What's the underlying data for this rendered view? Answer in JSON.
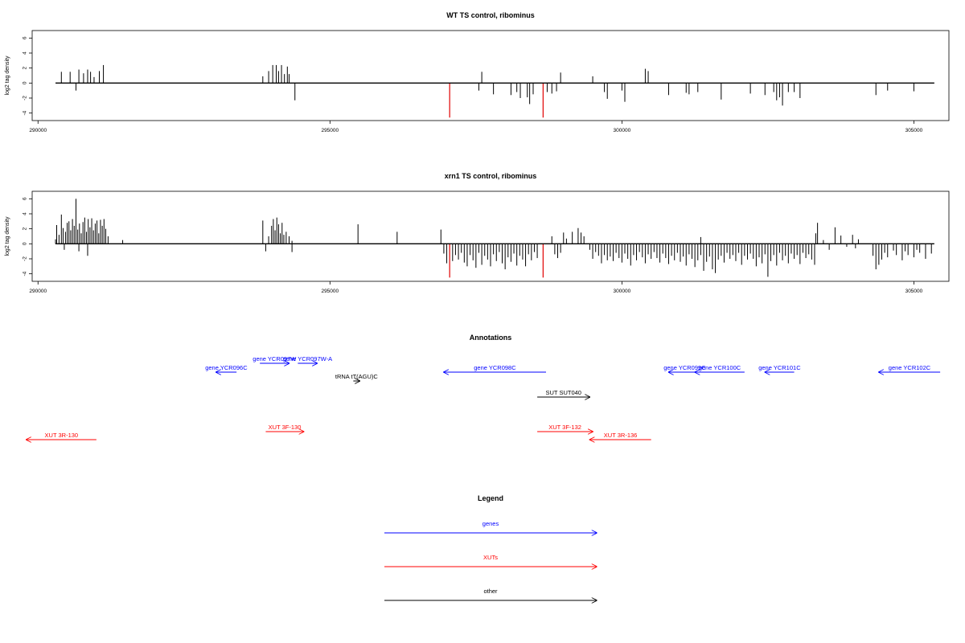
{
  "chart_data": [
    {
      "type": "bar",
      "title": "WT TS control, ribominus",
      "xlabel": "",
      "ylabel": "log2 tag density",
      "xlim": [
        289900,
        305600
      ],
      "ylim": [
        -5,
        7
      ],
      "x_ticks": [
        290000,
        295000,
        300000,
        305000
      ],
      "y_ticks": [
        6,
        4,
        2,
        0,
        -2,
        -4
      ],
      "baseline": [
        290300,
        305350
      ],
      "bars": [
        [
          290400,
          1.5
        ],
        [
          290550,
          1.5
        ],
        [
          290650,
          -1
        ],
        [
          290700,
          1.8
        ],
        [
          290780,
          1.3
        ],
        [
          290850,
          1.8
        ],
        [
          290900,
          1.5
        ],
        [
          290960,
          0.8
        ],
        [
          291050,
          1.6
        ],
        [
          291120,
          2.4
        ],
        [
          293850,
          0.9
        ],
        [
          293950,
          1.6
        ],
        [
          294020,
          2.4
        ],
        [
          294080,
          2.4
        ],
        [
          294120,
          1.6
        ],
        [
          294170,
          2.4
        ],
        [
          294220,
          1.2
        ],
        [
          294270,
          2.2
        ],
        [
          294300,
          1.2
        ],
        [
          294400,
          -2.3
        ],
        [
          297600,
          1.5
        ],
        [
          297550,
          -1
        ],
        [
          297800,
          -1.5
        ],
        [
          298100,
          -1.6
        ],
        [
          298200,
          -1.2
        ],
        [
          298260,
          -2.0
        ],
        [
          298380,
          -1.9
        ],
        [
          298420,
          -2.8
        ],
        [
          298480,
          -1.5
        ],
        [
          298720,
          -1.2
        ],
        [
          298800,
          -1.4
        ],
        [
          298880,
          -1.1
        ],
        [
          298950,
          1.4
        ],
        [
          299500,
          0.9
        ],
        [
          299750,
          -2.1
        ],
        [
          299700,
          -1.2
        ],
        [
          300000,
          -1.0
        ],
        [
          300050,
          -2.5
        ],
        [
          300400,
          1.9
        ],
        [
          300450,
          1.6
        ],
        [
          300800,
          -1.6
        ],
        [
          301100,
          -1.3
        ],
        [
          301150,
          -1.5
        ],
        [
          301300,
          -1.2
        ],
        [
          301700,
          -2.2
        ],
        [
          302200,
          -1.4
        ],
        [
          302450,
          -1.6
        ],
        [
          302600,
          -1.2
        ],
        [
          302650,
          -2.3
        ],
        [
          302700,
          -1.9
        ],
        [
          302750,
          -3.0
        ],
        [
          302850,
          -1.2
        ],
        [
          302950,
          -1.2
        ],
        [
          303050,
          -2.0
        ],
        [
          304350,
          -1.6
        ],
        [
          304550,
          -1.0
        ],
        [
          305000,
          -1.1
        ]
      ],
      "highlight_bars": [
        [
          297050,
          -4.6
        ],
        [
          298650,
          -4.6
        ]
      ],
      "highlight_color": "#e00000",
      "bar_color": "#000000"
    },
    {
      "type": "bar",
      "title": "xrn1 TS control, ribominus",
      "xlabel": "",
      "ylabel": "log2 tag density",
      "xlim": [
        289900,
        305600
      ],
      "ylim": [
        -5,
        7
      ],
      "x_ticks": [
        290000,
        295000,
        300000,
        305000
      ],
      "y_ticks": [
        6,
        4,
        2,
        0,
        -2,
        -4
      ],
      "baseline": [
        290300,
        305350
      ],
      "bars": [
        [
          290300,
          0.6
        ],
        [
          290320,
          2.5
        ],
        [
          290360,
          1.2
        ],
        [
          290400,
          3.9
        ],
        [
          290430,
          2.1
        ],
        [
          290470,
          1.6
        ],
        [
          290500,
          2.8
        ],
        [
          290530,
          3.0
        ],
        [
          290560,
          1.8
        ],
        [
          290590,
          3.3
        ],
        [
          290620,
          2.4
        ],
        [
          290650,
          6.0
        ],
        [
          290680,
          1.9
        ],
        [
          290710,
          2.7
        ],
        [
          290740,
          1.4
        ],
        [
          290770,
          2.9
        ],
        [
          290800,
          3.5
        ],
        [
          290830,
          1.6
        ],
        [
          290860,
          3.3
        ],
        [
          290890,
          2.2
        ],
        [
          290920,
          3.4
        ],
        [
          290950,
          1.8
        ],
        [
          290980,
          2.7
        ],
        [
          291010,
          3.1
        ],
        [
          291040,
          1.4
        ],
        [
          291070,
          3.2
        ],
        [
          291100,
          2.4
        ],
        [
          291130,
          3.3
        ],
        [
          291160,
          2.0
        ],
        [
          290450,
          -0.8
        ],
        [
          290700,
          -1.0
        ],
        [
          290850,
          -1.6
        ],
        [
          291450,
          0.5
        ],
        [
          291200,
          1.0
        ],
        [
          293850,
          3.1
        ],
        [
          293900,
          -1.0
        ],
        [
          293950,
          1.0
        ],
        [
          294000,
          2.4
        ],
        [
          294030,
          3.3
        ],
        [
          294060,
          1.8
        ],
        [
          294090,
          3.5
        ],
        [
          294120,
          2.6
        ],
        [
          294150,
          1.4
        ],
        [
          294180,
          2.8
        ],
        [
          294210,
          1.2
        ],
        [
          294250,
          1.6
        ],
        [
          294300,
          1.0
        ],
        [
          294350,
          0.4
        ],
        [
          294350,
          -1.1
        ],
        [
          295480,
          2.6
        ],
        [
          296150,
          1.6
        ],
        [
          296900,
          1.9
        ],
        [
          296950,
          -1.3
        ],
        [
          297000,
          -2.6
        ],
        [
          297100,
          -2.3
        ],
        [
          297150,
          -1.5
        ],
        [
          297200,
          -2.1
        ],
        [
          297250,
          -1.2
        ],
        [
          297300,
          -2.5
        ],
        [
          297350,
          -3.0
        ],
        [
          297400,
          -1.5
        ],
        [
          297450,
          -2.2
        ],
        [
          297500,
          -3.2
        ],
        [
          297550,
          -1.2
        ],
        [
          297600,
          -2.8
        ],
        [
          297650,
          -1.6
        ],
        [
          297700,
          -2.1
        ],
        [
          297750,
          -3.0
        ],
        [
          297800,
          -1.4
        ],
        [
          297850,
          -2.3
        ],
        [
          297900,
          -1.1
        ],
        [
          297950,
          -2.6
        ],
        [
          298000,
          -3.4
        ],
        [
          298050,
          -1.8
        ],
        [
          298100,
          -2.4
        ],
        [
          298150,
          -1.3
        ],
        [
          298200,
          -2.9
        ],
        [
          298250,
          -1.6
        ],
        [
          298300,
          -2.1
        ],
        [
          298350,
          -3.0
        ],
        [
          298400,
          -1.4
        ],
        [
          298450,
          -2.2
        ],
        [
          298500,
          -1.1
        ],
        [
          298550,
          -1.9
        ],
        [
          298800,
          1.0
        ],
        [
          298850,
          -1.4
        ],
        [
          298900,
          -1.9
        ],
        [
          298950,
          -1.2
        ],
        [
          299000,
          1.5
        ],
        [
          299050,
          0.7
        ],
        [
          299150,
          1.6
        ],
        [
          299250,
          2.1
        ],
        [
          299300,
          1.5
        ],
        [
          299350,
          1.0
        ],
        [
          299450,
          -0.8
        ],
        [
          299500,
          -2.0
        ],
        [
          299550,
          -1.1
        ],
        [
          299600,
          -1.6
        ],
        [
          299650,
          -2.6
        ],
        [
          299700,
          -1.5
        ],
        [
          299750,
          -2.2
        ],
        [
          299800,
          -1.7
        ],
        [
          299850,
          -2.3
        ],
        [
          299900,
          -1.2
        ],
        [
          299950,
          -1.9
        ],
        [
          300000,
          -2.5
        ],
        [
          300050,
          -1.3
        ],
        [
          300100,
          -2.0
        ],
        [
          300150,
          -2.9
        ],
        [
          300200,
          -1.5
        ],
        [
          300250,
          -2.2
        ],
        [
          300300,
          -1.1
        ],
        [
          300350,
          -1.8
        ],
        [
          300400,
          -2.6
        ],
        [
          300450,
          -1.4
        ],
        [
          300500,
          -2.0
        ],
        [
          300550,
          -1.1
        ],
        [
          300600,
          -1.9
        ],
        [
          300650,
          -2.5
        ],
        [
          300700,
          -1.3
        ],
        [
          300750,
          -1.9
        ],
        [
          300800,
          -2.7
        ],
        [
          300850,
          -1.6
        ],
        [
          300900,
          -2.2
        ],
        [
          300950,
          -1.2
        ],
        [
          301000,
          -2.4
        ],
        [
          301050,
          -1.7
        ],
        [
          301100,
          -2.9
        ],
        [
          301150,
          -1.4
        ],
        [
          301200,
          -2.0
        ],
        [
          301250,
          -3.1
        ],
        [
          301300,
          -2.2
        ],
        [
          301350,
          -1.5
        ],
        [
          301400,
          -3.6
        ],
        [
          301450,
          -2.4
        ],
        [
          301500,
          -1.7
        ],
        [
          301550,
          -3.4
        ],
        [
          301600,
          -3.9
        ],
        [
          301650,
          -2.1
        ],
        [
          301700,
          -1.6
        ],
        [
          301750,
          -2.5
        ],
        [
          301800,
          -1.2
        ],
        [
          301850,
          -2.0
        ],
        [
          301900,
          -1.5
        ],
        [
          301950,
          -2.3
        ],
        [
          302000,
          -1.2
        ],
        [
          302050,
          -2.8
        ],
        [
          302100,
          -1.6
        ],
        [
          302150,
          -2.1
        ],
        [
          302200,
          -1.3
        ],
        [
          302250,
          -2.0
        ],
        [
          302300,
          -3.0
        ],
        [
          302350,
          -1.8
        ],
        [
          302400,
          -2.6
        ],
        [
          302450,
          -1.4
        ],
        [
          302500,
          -4.4
        ],
        [
          302550,
          -2.3
        ],
        [
          302600,
          -1.5
        ],
        [
          302650,
          -2.9
        ],
        [
          302700,
          -1.2
        ],
        [
          302750,
          -2.2
        ],
        [
          302800,
          -1.6
        ],
        [
          302850,
          -2.6
        ],
        [
          302900,
          -1.3
        ],
        [
          302950,
          -2.0
        ],
        [
          303000,
          -1.5
        ],
        [
          303050,
          -2.7
        ],
        [
          303100,
          -1.2
        ],
        [
          303150,
          -1.9
        ],
        [
          303200,
          -1.4
        ],
        [
          303250,
          -2.1
        ],
        [
          303300,
          -2.8
        ],
        [
          301350,
          0.9
        ],
        [
          303320,
          1.4
        ],
        [
          303350,
          2.8
        ],
        [
          303450,
          0.5
        ],
        [
          303550,
          -0.8
        ],
        [
          303650,
          2.2
        ],
        [
          303750,
          1.1
        ],
        [
          303850,
          -0.4
        ],
        [
          303950,
          1.2
        ],
        [
          304000,
          -0.6
        ],
        [
          304050,
          0.6
        ],
        [
          304300,
          -1.6
        ],
        [
          304350,
          -3.4
        ],
        [
          304400,
          -2.8
        ],
        [
          304450,
          -2.1
        ],
        [
          304500,
          -1.2
        ],
        [
          304550,
          -1.8
        ],
        [
          304650,
          -0.9
        ],
        [
          304700,
          -1.5
        ],
        [
          304800,
          -2.2
        ],
        [
          304850,
          -1.0
        ],
        [
          304900,
          -1.5
        ],
        [
          305000,
          -1.8
        ],
        [
          305050,
          -0.8
        ],
        [
          305100,
          -1.2
        ],
        [
          305200,
          -2.0
        ],
        [
          305300,
          -1.3
        ]
      ],
      "highlight_bars": [
        [
          297050,
          -4.5
        ],
        [
          298650,
          -4.5
        ]
      ],
      "highlight_color": "#e00000",
      "bar_color": "#000000"
    },
    {
      "type": "annotation_track",
      "title": "Annotations",
      "xlim": [
        289900,
        305600
      ],
      "features": [
        {
          "label": "gene YCR096C",
          "color": "#0000ff",
          "start": 293400,
          "end": 293050,
          "row": 2
        },
        {
          "label": "gene YCR097W",
          "color": "#0000ff",
          "start": 293800,
          "end": 294300,
          "row": 1
        },
        {
          "label": "gene YCR097W-A",
          "color": "#0000ff",
          "start": 294450,
          "end": 294780,
          "row": 1
        },
        {
          "label": "tRNA tT(AGU)C",
          "color": "#000000",
          "start": 295400,
          "end": 295510,
          "row": 3
        },
        {
          "label": "gene YCR098C",
          "color": "#0000ff",
          "start": 298700,
          "end": 296950,
          "row": 2
        },
        {
          "label": "gene YCR099C",
          "color": "#0000ff",
          "start": 301350,
          "end": 300800,
          "row": 2
        },
        {
          "label": "gene YCR100C",
          "color": "#0000ff",
          "start": 302100,
          "end": 301250,
          "row": 2
        },
        {
          "label": "gene YCR101C",
          "color": "#0000ff",
          "start": 302950,
          "end": 302450,
          "row": 2
        },
        {
          "label": "gene YCR102C",
          "color": "#0000ff",
          "start": 305450,
          "end": 304400,
          "row": 2
        },
        {
          "label": "SUT SUT040",
          "color": "#000000",
          "start": 298550,
          "end": 299450,
          "row": 4
        },
        {
          "label": "XUT 3R-130",
          "color": "#ff0000",
          "start": 291000,
          "end": 289800,
          "row": 6
        },
        {
          "label": "XUT 3F-130",
          "color": "#ff0000",
          "start": 293900,
          "end": 294550,
          "row": 5
        },
        {
          "label": "XUT 3F-132",
          "color": "#ff0000",
          "start": 298550,
          "end": 299500,
          "row": 5
        },
        {
          "label": "XUT 3R-136",
          "color": "#ff0000",
          "start": 300500,
          "end": 299450,
          "row": 6
        }
      ]
    }
  ],
  "legend": {
    "title": "Legend",
    "items": [
      {
        "label": "genes",
        "color": "#0000ff"
      },
      {
        "label": "XUTs",
        "color": "#ff0000"
      },
      {
        "label": "other",
        "color": "#000000"
      }
    ]
  }
}
